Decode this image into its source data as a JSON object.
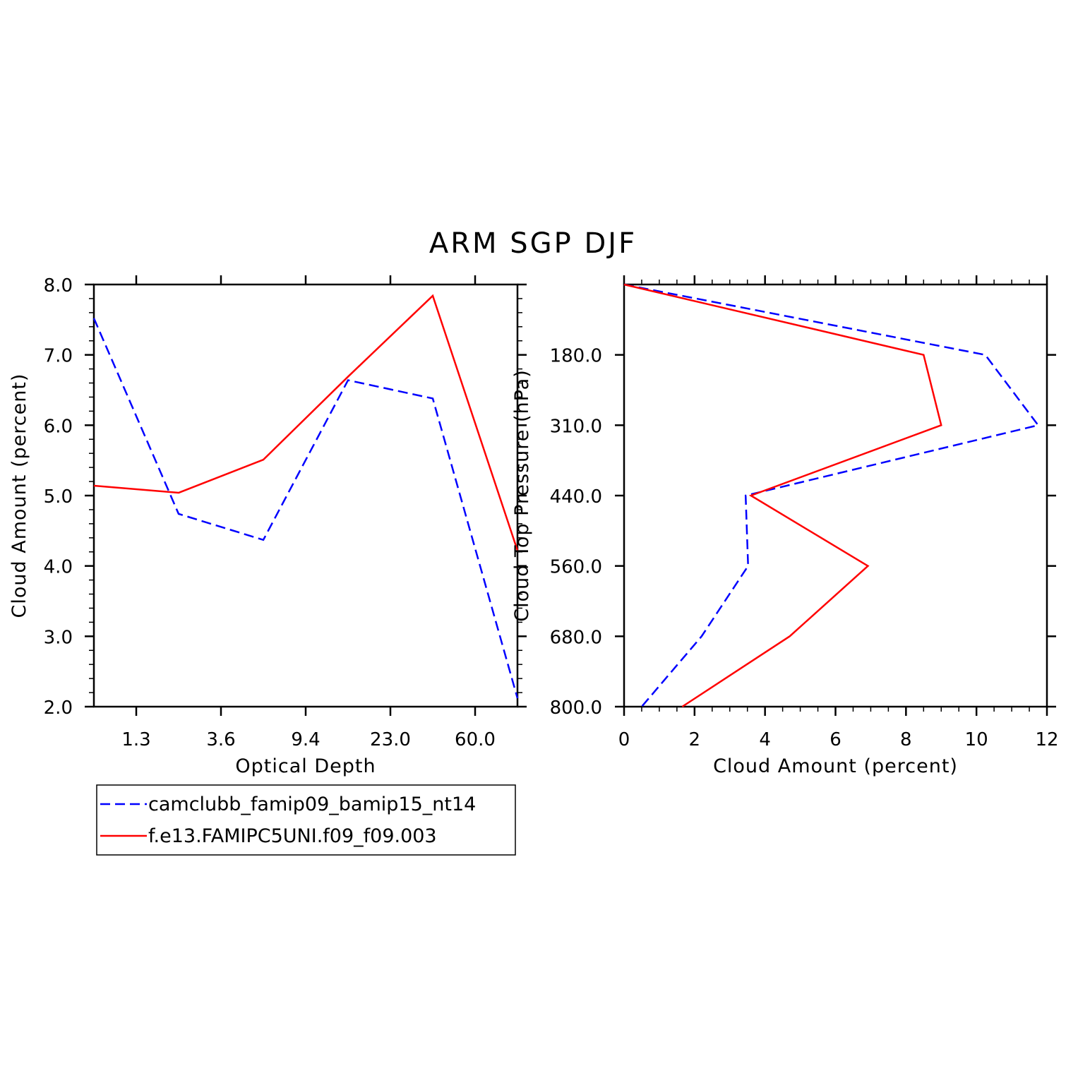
{
  "title": "ARM SGP DJF",
  "colors": {
    "series1": "#0000ff",
    "series2": "#ff0000",
    "axis": "#000000"
  },
  "chart_data": [
    {
      "type": "line",
      "xlabel": "Optical Depth",
      "ylabel": "Cloud Amount (percent)",
      "x_scale": "categorical",
      "x_tick_labels": [
        "1.3",
        "3.6",
        "9.4",
        "23.0",
        "60.0"
      ],
      "ylim": [
        2.0,
        8.0
      ],
      "y_ticks": [
        2.0,
        3.0,
        4.0,
        5.0,
        6.0,
        7.0,
        8.0
      ],
      "y_tick_labels": [
        "2.0",
        "3.0",
        "4.0",
        "5.0",
        "6.0",
        "7.0",
        "8.0"
      ],
      "series": [
        {
          "name": "camclubb_famip09_bamip15_nt14",
          "style": "dashed",
          "color": "#0000ff",
          "values": [
            7.52,
            4.74,
            4.37,
            6.64,
            6.38,
            2.12
          ]
        },
        {
          "name": "f.e13.FAMIPC5UNI.f09_f09.003",
          "style": "solid",
          "color": "#ff0000",
          "values": [
            5.14,
            5.04,
            5.51,
            6.69,
            7.84,
            4.22
          ]
        }
      ]
    },
    {
      "type": "line",
      "xlabel": "Cloud Amount (percent)",
      "ylabel": "Cloud Top Pressure (hPa)",
      "xlim": [
        0,
        12
      ],
      "x_ticks": [
        0,
        2,
        4,
        6,
        8,
        10,
        12
      ],
      "x_tick_labels": [
        "0",
        "2",
        "4",
        "6",
        "8",
        "10",
        "12"
      ],
      "y_tick_labels": [
        "180.0",
        "310.0",
        "440.0",
        "560.0",
        "680.0",
        "800.0"
      ],
      "y_reversed": true,
      "series": [
        {
          "name": "camclubb_famip09_bamip15_nt14",
          "style": "dashed",
          "color": "#0000ff",
          "values": [
            0.0,
            10.25,
            11.75,
            3.45,
            3.52,
            2.2,
            0.5
          ]
        },
        {
          "name": "f.e13.FAMIPC5UNI.f09_f09.003",
          "style": "solid",
          "color": "#ff0000",
          "values": [
            0.0,
            8.5,
            9.0,
            3.6,
            6.92,
            4.7,
            1.65
          ]
        }
      ]
    }
  ],
  "legend": {
    "placement": "below-left",
    "entries": [
      {
        "label": "camclubb_famip09_bamip15_nt14",
        "style": "dashed",
        "color": "#0000ff"
      },
      {
        "label": "f.e13.FAMIPC5UNI.f09_f09.003",
        "style": "solid",
        "color": "#ff0000"
      }
    ]
  }
}
